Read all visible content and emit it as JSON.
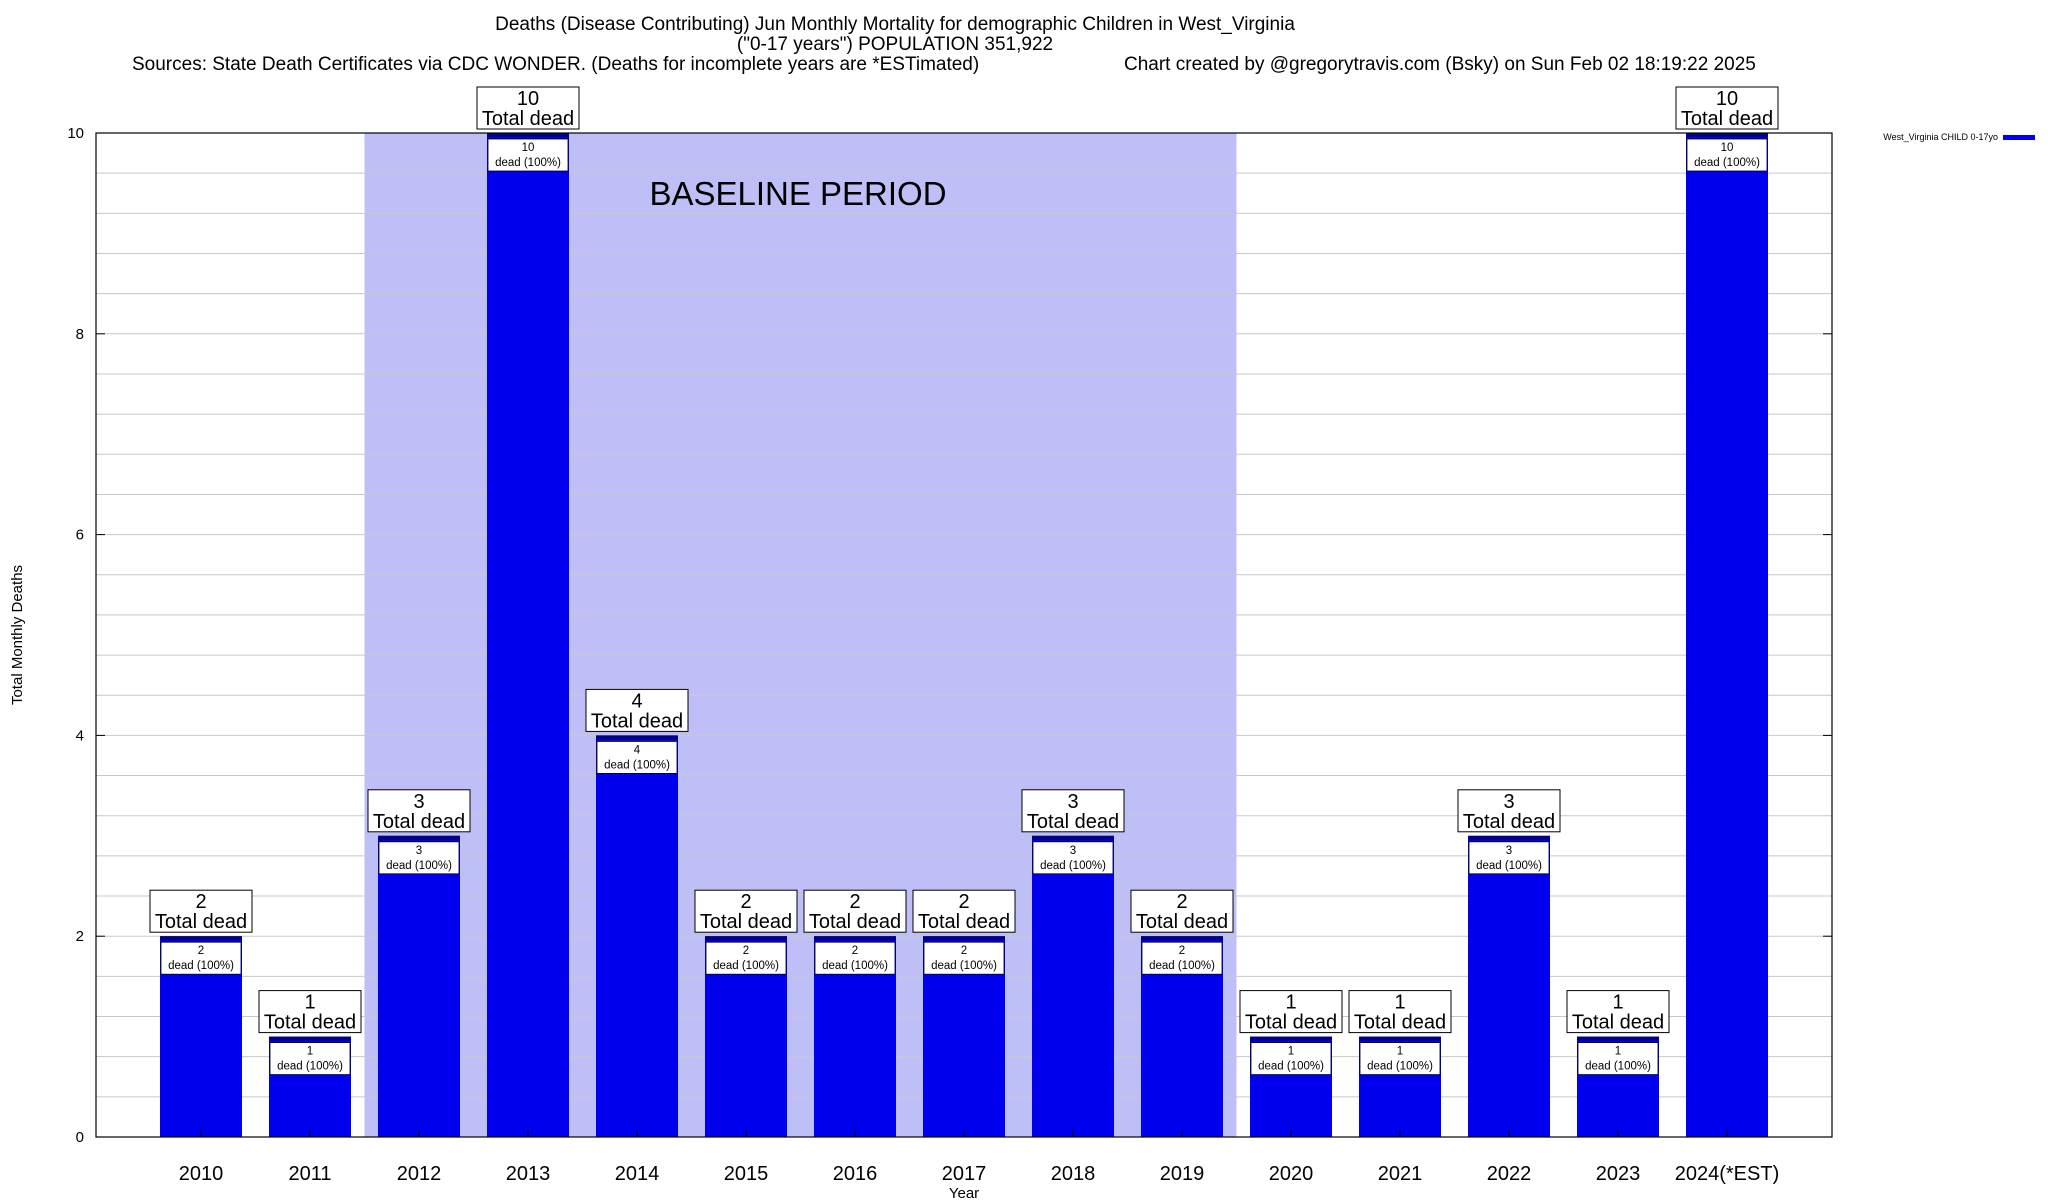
{
  "header": {
    "title_line1": "Deaths (Disease Contributing) Jun Monthly Mortality for demographic Children in West_Virginia",
    "title_line2": "(\"0-17 years\") POPULATION 351,922",
    "sources": "Sources: State Death Certificates via CDC WONDER. (Deaths for incomplete years are *ESTimated)",
    "credit": "Chart created by @gregorytravis.com (Bsky) on Sun Feb 02 18:19:22 2025"
  },
  "chart_data": {
    "type": "bar",
    "xlabel": "Year",
    "ylabel": "Total Monthly Deaths",
    "ylim": [
      0,
      10
    ],
    "yticks": [
      "0",
      "2",
      "4",
      "6",
      "8",
      "10"
    ],
    "grid": true,
    "categories": [
      "2010",
      "2011",
      "2012",
      "2013",
      "2014",
      "2015",
      "2016",
      "2017",
      "2018",
      "2019",
      "2020",
      "2021",
      "2022",
      "2023",
      "2024(*EST)"
    ],
    "series": [
      {
        "name": "West_Virginia CHILD 0-17yo",
        "color": "#0000ee",
        "values": [
          2,
          1,
          3,
          10,
          4,
          2,
          2,
          2,
          3,
          2,
          1,
          1,
          3,
          1,
          10
        ]
      }
    ],
    "total_labels": [
      "2",
      "1",
      "3",
      "10",
      "4",
      "2",
      "2",
      "2",
      "3",
      "2",
      "1",
      "1",
      "3",
      "1",
      "10"
    ],
    "total_suffix": "Total dead",
    "inner_labels": [
      "2",
      "1",
      "3",
      "10",
      "4",
      "2",
      "2",
      "2",
      "3",
      "2",
      "1",
      "1",
      "3",
      "1",
      "10"
    ],
    "inner_suffix": "dead (100%)",
    "baseline": {
      "label": "BASELINE PERIOD",
      "start": "2012",
      "end": "2019",
      "color": "#bfbff8"
    },
    "legend_position": "top-right"
  }
}
